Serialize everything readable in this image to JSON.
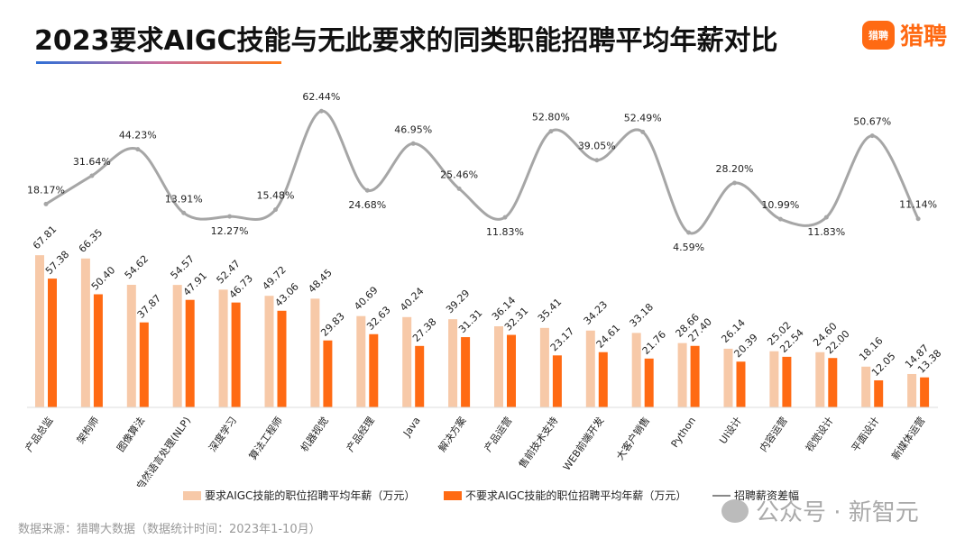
{
  "header": {
    "title": "2023要求AIGC技能与无此要求的同类职能招聘平均年薪对比",
    "logo_badge": "猎聘",
    "logo_text": "猎聘"
  },
  "footer": {
    "source": "数据来源：猎聘大数据（数据统计时间：2023年1-10月）",
    "watermark": "公众号 · 新智元"
  },
  "colors": {
    "with_aigc": "#f7c9a8",
    "without_aigc": "#ff6a13",
    "line": "#a6a6a6"
  },
  "chart_data": {
    "type": "bar+line",
    "categories": [
      "产品总监",
      "架构师",
      "图像算法",
      "自然语言处理(NLP)",
      "深度学习",
      "算法工程师",
      "机器视觉",
      "产品经理",
      "Java",
      "解决方案",
      "产品运营",
      "售前技术支持",
      "WEB前端开发",
      "大客户销售",
      "Python",
      "UI设计",
      "内容运营",
      "视觉设计",
      "平面设计",
      "新媒体运营"
    ],
    "series": [
      {
        "name": "要求AIGC技能的职位招聘平均年薪（万元）",
        "type": "bar",
        "values": [
          "67.81",
          "66.35",
          "54.62",
          "54.57",
          "52.47",
          "49.72",
          "48.45",
          "40.69",
          "40.24",
          "39.29",
          "36.14",
          "35.41",
          "34.23",
          "33.18",
          "28.66",
          "26.14",
          "25.02",
          "24.60",
          "18.16",
          "14.87"
        ]
      },
      {
        "name": "不要求AIGC技能的职位招聘平均年薪（万元）",
        "type": "bar",
        "values": [
          "57.38",
          "50.40",
          "37.87",
          "47.91",
          "46.73",
          "43.06",
          "29.83",
          "32.63",
          "27.38",
          "31.31",
          "32.31",
          "23.17",
          "24.61",
          "21.76",
          "27.40",
          "20.39",
          "22.54",
          "22.00",
          "12.05",
          "13.38"
        ]
      },
      {
        "name": "招聘薪资差幅",
        "type": "line",
        "values": [
          "18.17%",
          "31.64%",
          "44.23%",
          "13.91%",
          "12.27%",
          "15.48%",
          "62.44%",
          "24.68%",
          "46.95%",
          "25.46%",
          "11.83%",
          "52.80%",
          "39.05%",
          "52.49%",
          "4.59%",
          "28.20%",
          "10.99%",
          "11.83%",
          "50.67%",
          "11.14%"
        ]
      }
    ],
    "legend_position": "bottom",
    "grid": false
  }
}
